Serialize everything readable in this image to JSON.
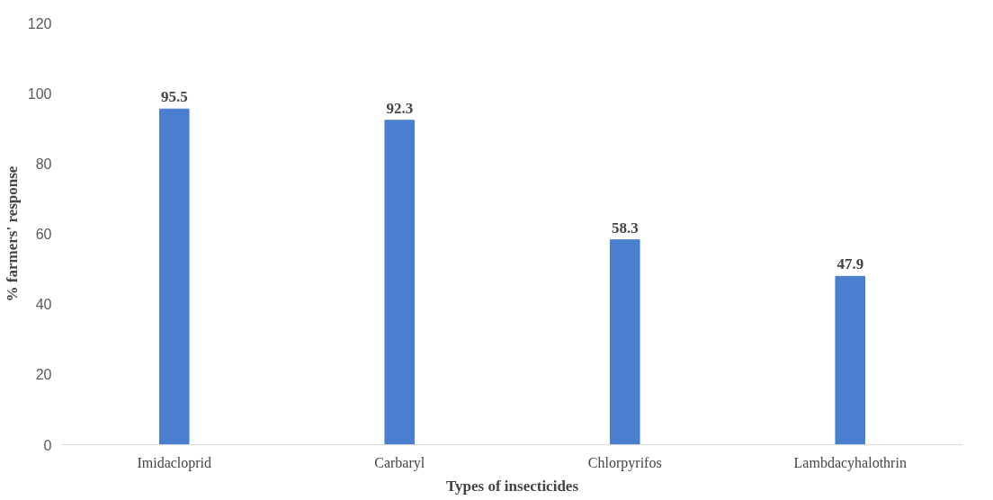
{
  "chart_data": {
    "type": "bar",
    "xlabel": "Types of insecticides",
    "ylabel": "% farmers' response",
    "categories": [
      "Imidacloprid",
      "Carbaryl",
      "Chlorpyrifos",
      "Lambdacyhalothrin"
    ],
    "values": [
      95.5,
      92.3,
      58.3,
      47.9
    ],
    "color": "#4a7fcf",
    "ylim": [
      0,
      120
    ],
    "yticks": [
      0,
      20,
      40,
      60,
      80,
      100,
      120
    ],
    "grid": false,
    "data_labels": true
  }
}
